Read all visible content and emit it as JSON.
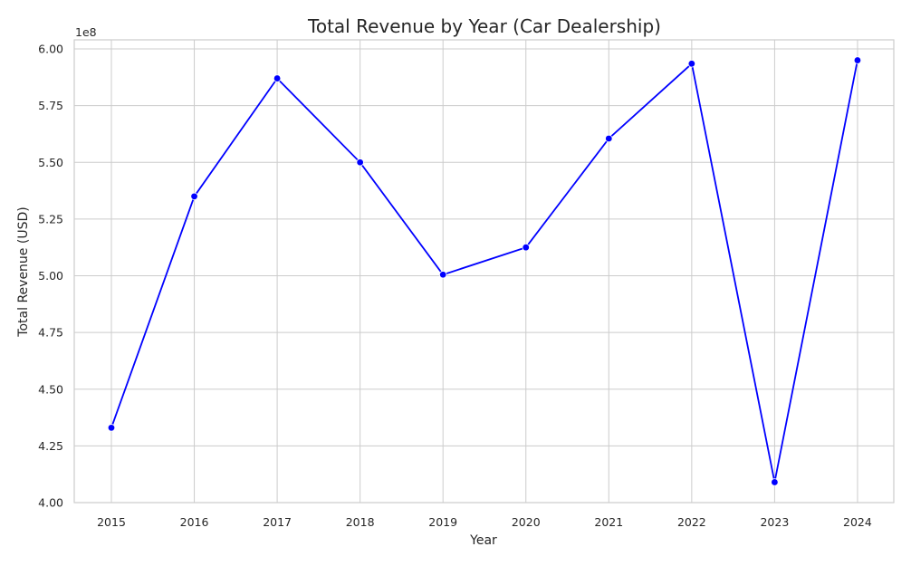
{
  "chart_data": {
    "type": "line",
    "title": "Total Revenue by Year (Car Dealership)",
    "xlabel": "Year",
    "ylabel": "Total Revenue (USD)",
    "y_offset_label": "1e8",
    "categories": [
      "2015",
      "2016",
      "2017",
      "2018",
      "2019",
      "2020",
      "2021",
      "2022",
      "2023",
      "2024"
    ],
    "series": [
      {
        "values": [
          433000000,
          535000000,
          587000000,
          550000000,
          500500000,
          512500000,
          560500000,
          593500000,
          409000000,
          595000000
        ],
        "color": "#0000ff",
        "marker": "circle"
      }
    ],
    "ylim": [
      400000000,
      604000000
    ],
    "yticks": [
      400000000,
      425000000,
      450000000,
      475000000,
      500000000,
      525000000,
      550000000,
      575000000,
      600000000
    ],
    "ytick_labels": [
      "4.00",
      "4.25",
      "4.50",
      "4.75",
      "5.00",
      "5.25",
      "5.50",
      "5.75",
      "6.00"
    ],
    "grid": true
  }
}
